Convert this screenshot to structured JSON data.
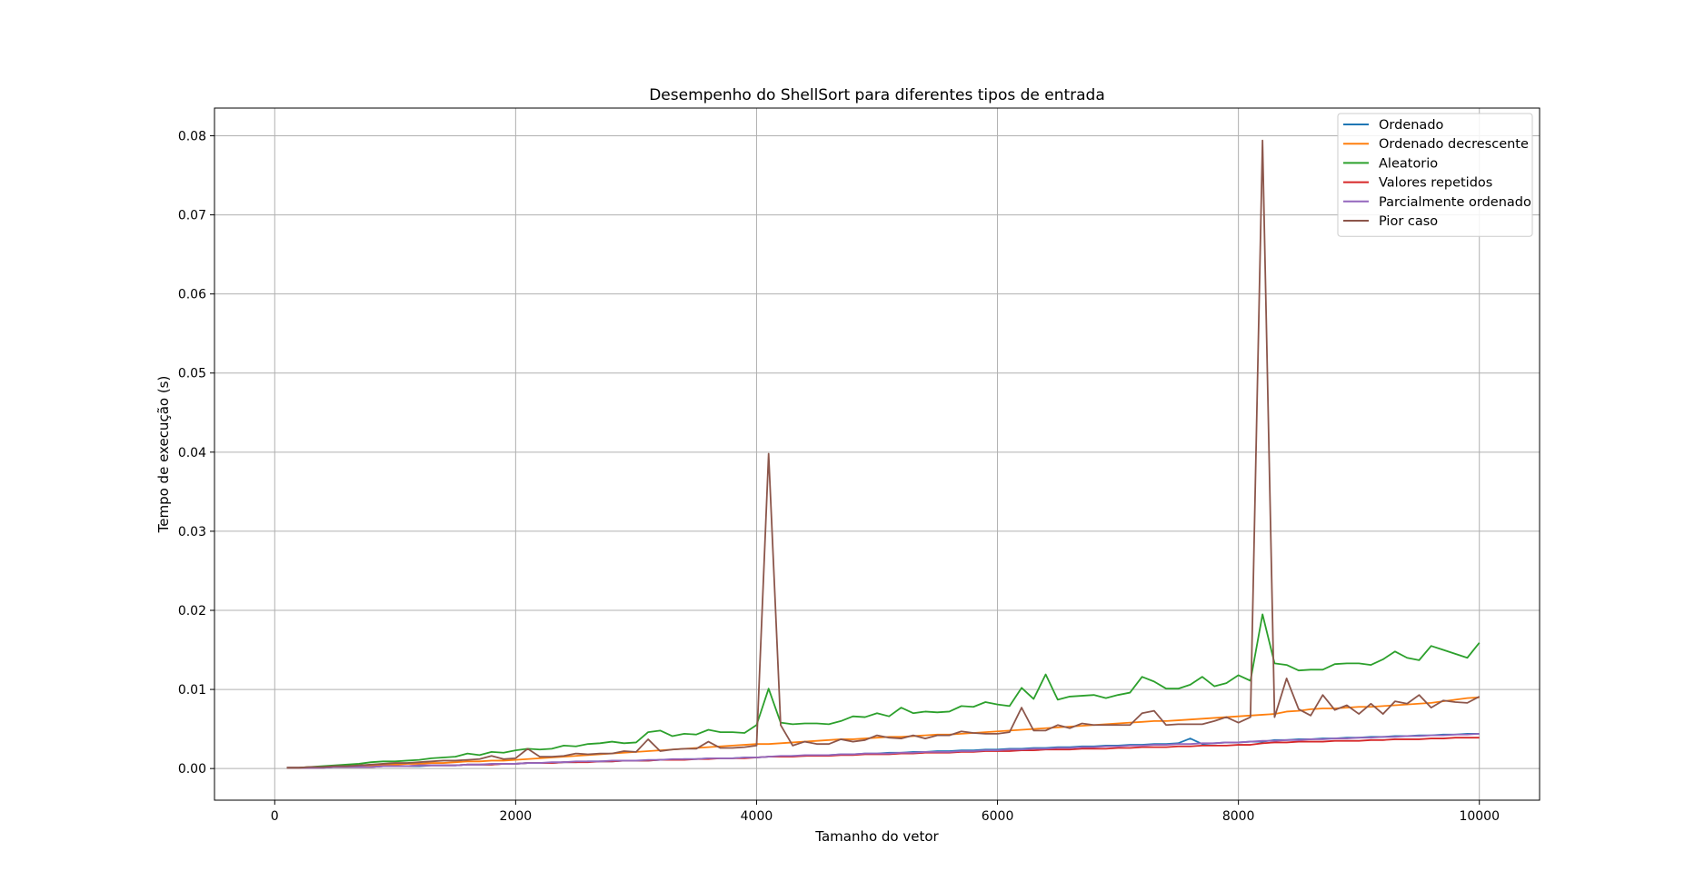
{
  "chart_data": {
    "type": "line",
    "title": "Desempenho do ShellSort para diferentes tipos de entrada",
    "xlabel": "Tamanho do vetor",
    "ylabel": "Tempo de execução (s)",
    "xlim": [
      -500,
      10500
    ],
    "ylim": [
      -0.004,
      0.0835
    ],
    "xticks": [
      0,
      2000,
      4000,
      6000,
      8000,
      10000
    ],
    "xtick_labels": [
      "0",
      "2000",
      "4000",
      "6000",
      "8000",
      "10000"
    ],
    "yticks": [
      0,
      0.01,
      0.02,
      0.03,
      0.04,
      0.05,
      0.06,
      0.07,
      0.08
    ],
    "ytick_labels": [
      "0.00",
      "0.01",
      "0.02",
      "0.03",
      "0.04",
      "0.05",
      "0.06",
      "0.07",
      "0.08"
    ],
    "grid": true,
    "legend_position": "top-right",
    "x": {
      "start": 100,
      "step": 100,
      "count": 100
    },
    "series": [
      {
        "name": "Ordenado",
        "color": "#1f77b4",
        "values": [
          0.0001,
          0.0001,
          0.0001,
          0.0001,
          0.0002,
          0.0002,
          0.0002,
          0.0002,
          0.0003,
          0.0003,
          0.0003,
          0.0003,
          0.0004,
          0.0004,
          0.0004,
          0.0005,
          0.0005,
          0.0005,
          0.0006,
          0.0006,
          0.0007,
          0.0007,
          0.0007,
          0.0008,
          0.0008,
          0.0009,
          0.0009,
          0.0009,
          0.001,
          0.001,
          0.001,
          0.0011,
          0.0011,
          0.0012,
          0.0012,
          0.0013,
          0.0013,
          0.0013,
          0.0014,
          0.0014,
          0.0015,
          0.0015,
          0.0016,
          0.0016,
          0.0017,
          0.0017,
          0.0018,
          0.0018,
          0.0019,
          0.0019,
          0.002,
          0.002,
          0.0021,
          0.0021,
          0.0022,
          0.0022,
          0.0023,
          0.0023,
          0.0024,
          0.0024,
          0.0025,
          0.0025,
          0.0026,
          0.0026,
          0.0027,
          0.0027,
          0.0028,
          0.0028,
          0.0029,
          0.0029,
          0.003,
          0.003,
          0.0031,
          0.0031,
          0.0032,
          0.0038,
          0.0031,
          0.0032,
          0.0033,
          0.0033,
          0.0034,
          0.0034,
          0.0036,
          0.0036,
          0.0037,
          0.0037,
          0.0038,
          0.0038,
          0.0039,
          0.0039,
          0.004,
          0.004,
          0.0041,
          0.0041,
          0.0042,
          0.0042,
          0.0043,
          0.0043,
          0.0044,
          0.0044
        ]
      },
      {
        "name": "Ordenado decrescente",
        "color": "#ff7f0e",
        "values": [
          0.0001,
          0.0001,
          0.0002,
          0.0002,
          0.0003,
          0.0003,
          0.0004,
          0.0004,
          0.0005,
          0.0005,
          0.0006,
          0.0006,
          0.0007,
          0.0007,
          0.0008,
          0.0009,
          0.0009,
          0.001,
          0.001,
          0.0011,
          0.0012,
          0.0013,
          0.0014,
          0.0015,
          0.0016,
          0.0017,
          0.0018,
          0.0019,
          0.002,
          0.0021,
          0.0022,
          0.0023,
          0.0024,
          0.0025,
          0.0026,
          0.0027,
          0.0028,
          0.0029,
          0.003,
          0.0031,
          0.0031,
          0.0032,
          0.0033,
          0.0034,
          0.0035,
          0.0036,
          0.0037,
          0.0037,
          0.0038,
          0.0039,
          0.004,
          0.004,
          0.0041,
          0.0042,
          0.0043,
          0.0043,
          0.0044,
          0.0045,
          0.0046,
          0.0047,
          0.0048,
          0.0049,
          0.005,
          0.0051,
          0.0052,
          0.0053,
          0.0054,
          0.0055,
          0.0056,
          0.0057,
          0.0058,
          0.0059,
          0.006,
          0.006,
          0.0061,
          0.0062,
          0.0063,
          0.0064,
          0.0065,
          0.0066,
          0.0067,
          0.0068,
          0.0069,
          0.0072,
          0.0073,
          0.0075,
          0.0076,
          0.0076,
          0.0077,
          0.0078,
          0.0078,
          0.0079,
          0.008,
          0.0081,
          0.0082,
          0.0083,
          0.0085,
          0.0087,
          0.0089,
          0.009
        ]
      },
      {
        "name": "Aleatorio",
        "color": "#2ca02c",
        "values": [
          0.0001,
          0.0001,
          0.0002,
          0.0003,
          0.0004,
          0.0005,
          0.0006,
          0.0008,
          0.0009,
          0.0009,
          0.001,
          0.0011,
          0.0013,
          0.0014,
          0.0015,
          0.0019,
          0.0017,
          0.0021,
          0.002,
          0.0023,
          0.0025,
          0.0024,
          0.0025,
          0.0029,
          0.0028,
          0.0031,
          0.0032,
          0.0034,
          0.0032,
          0.0033,
          0.0046,
          0.0048,
          0.0041,
          0.0044,
          0.0043,
          0.0049,
          0.0046,
          0.0046,
          0.0045,
          0.0055,
          0.0101,
          0.0058,
          0.0056,
          0.0057,
          0.0057,
          0.0056,
          0.006,
          0.0066,
          0.0065,
          0.007,
          0.0066,
          0.0077,
          0.007,
          0.0072,
          0.0071,
          0.0072,
          0.0079,
          0.0078,
          0.0084,
          0.0081,
          0.0079,
          0.0102,
          0.0088,
          0.0119,
          0.0087,
          0.0091,
          0.0092,
          0.0093,
          0.0089,
          0.0093,
          0.0096,
          0.0116,
          0.011,
          0.0101,
          0.0101,
          0.0106,
          0.0116,
          0.0104,
          0.0108,
          0.0118,
          0.0111,
          0.0195,
          0.0133,
          0.0131,
          0.0124,
          0.0125,
          0.0125,
          0.0132,
          0.0133,
          0.0133,
          0.0131,
          0.0138,
          0.0148,
          0.014,
          0.0137,
          0.0155,
          0.015,
          0.0145,
          0.014,
          0.0159
        ]
      },
      {
        "name": "Valores repetidos",
        "color": "#d62728",
        "values": [
          0.0001,
          0.0001,
          0.0001,
          0.0001,
          0.0002,
          0.0002,
          0.0002,
          0.0002,
          0.0003,
          0.0003,
          0.0003,
          0.0004,
          0.0004,
          0.0004,
          0.0004,
          0.0005,
          0.0005,
          0.0005,
          0.0006,
          0.0006,
          0.0007,
          0.0007,
          0.0007,
          0.0008,
          0.0008,
          0.0008,
          0.0009,
          0.0009,
          0.001,
          0.001,
          0.001,
          0.0011,
          0.0011,
          0.0011,
          0.0012,
          0.0012,
          0.0013,
          0.0013,
          0.0013,
          0.0014,
          0.0015,
          0.0015,
          0.0015,
          0.0016,
          0.0016,
          0.0016,
          0.0017,
          0.0017,
          0.0018,
          0.0018,
          0.0018,
          0.0019,
          0.0019,
          0.002,
          0.002,
          0.002,
          0.0021,
          0.0021,
          0.0022,
          0.0022,
          0.0022,
          0.0023,
          0.0023,
          0.0024,
          0.0024,
          0.0024,
          0.0025,
          0.0025,
          0.0025,
          0.0026,
          0.0026,
          0.0027,
          0.0027,
          0.0027,
          0.0028,
          0.0028,
          0.0029,
          0.0029,
          0.0029,
          0.003,
          0.003,
          0.0032,
          0.0033,
          0.0033,
          0.0034,
          0.0034,
          0.0034,
          0.0035,
          0.0035,
          0.0035,
          0.0036,
          0.0036,
          0.0037,
          0.0037,
          0.0037,
          0.0038,
          0.0038,
          0.0039,
          0.0039,
          0.0039
        ]
      },
      {
        "name": "Parcialmente ordenado",
        "color": "#9467bd",
        "values": [
          0.0001,
          0.0001,
          0.0001,
          0.0001,
          0.0002,
          0.0002,
          0.0002,
          0.0002,
          0.0003,
          0.0003,
          0.0003,
          0.0004,
          0.0004,
          0.0004,
          0.0004,
          0.0005,
          0.0005,
          0.0006,
          0.0006,
          0.0006,
          0.0007,
          0.0007,
          0.0008,
          0.0008,
          0.0009,
          0.0009,
          0.0009,
          0.001,
          0.001,
          0.001,
          0.0011,
          0.0011,
          0.0012,
          0.0012,
          0.0012,
          0.0013,
          0.0013,
          0.0013,
          0.0014,
          0.0014,
          0.0015,
          0.0016,
          0.0016,
          0.0017,
          0.0017,
          0.0017,
          0.0018,
          0.0018,
          0.0019,
          0.0019,
          0.0019,
          0.002,
          0.002,
          0.0021,
          0.0021,
          0.0021,
          0.0022,
          0.0022,
          0.0023,
          0.0023,
          0.0024,
          0.0024,
          0.0025,
          0.0025,
          0.0026,
          0.0026,
          0.0027,
          0.0027,
          0.0028,
          0.0028,
          0.0029,
          0.0029,
          0.003,
          0.003,
          0.0031,
          0.0031,
          0.0032,
          0.0032,
          0.0033,
          0.0033,
          0.0034,
          0.0035,
          0.0035,
          0.0036,
          0.0036,
          0.0037,
          0.0037,
          0.0038,
          0.0038,
          0.0039,
          0.0039,
          0.004,
          0.004,
          0.0041,
          0.0041,
          0.0042,
          0.0042,
          0.0043,
          0.0043,
          0.0044
        ]
      },
      {
        "name": "Pior caso",
        "color": "#8c564b",
        "values": [
          0.0001,
          0.0001,
          0.0002,
          0.0002,
          0.0003,
          0.0003,
          0.0004,
          0.0005,
          0.0006,
          0.0007,
          0.0007,
          0.0008,
          0.0009,
          0.001,
          0.001,
          0.0011,
          0.0012,
          0.0016,
          0.0012,
          0.0013,
          0.0025,
          0.0015,
          0.0015,
          0.0016,
          0.0019,
          0.0018,
          0.0019,
          0.0019,
          0.0022,
          0.0021,
          0.0037,
          0.0022,
          0.0024,
          0.0025,
          0.0025,
          0.0034,
          0.0026,
          0.0026,
          0.0027,
          0.0029,
          0.0398,
          0.0055,
          0.0029,
          0.0034,
          0.0031,
          0.0031,
          0.0037,
          0.0034,
          0.0036,
          0.0042,
          0.0039,
          0.0038,
          0.0042,
          0.0038,
          0.0042,
          0.0042,
          0.0047,
          0.0045,
          0.0044,
          0.0044,
          0.0046,
          0.0077,
          0.0048,
          0.0048,
          0.0055,
          0.0051,
          0.0057,
          0.0055,
          0.0055,
          0.0055,
          0.0055,
          0.007,
          0.0073,
          0.0055,
          0.0056,
          0.0056,
          0.0056,
          0.006,
          0.0065,
          0.0058,
          0.0065,
          0.0794,
          0.0065,
          0.0114,
          0.0075,
          0.0067,
          0.0093,
          0.0074,
          0.008,
          0.0069,
          0.0082,
          0.0069,
          0.0085,
          0.0082,
          0.0093,
          0.0077,
          0.0086,
          0.0084,
          0.0083,
          0.0091
        ]
      }
    ]
  }
}
